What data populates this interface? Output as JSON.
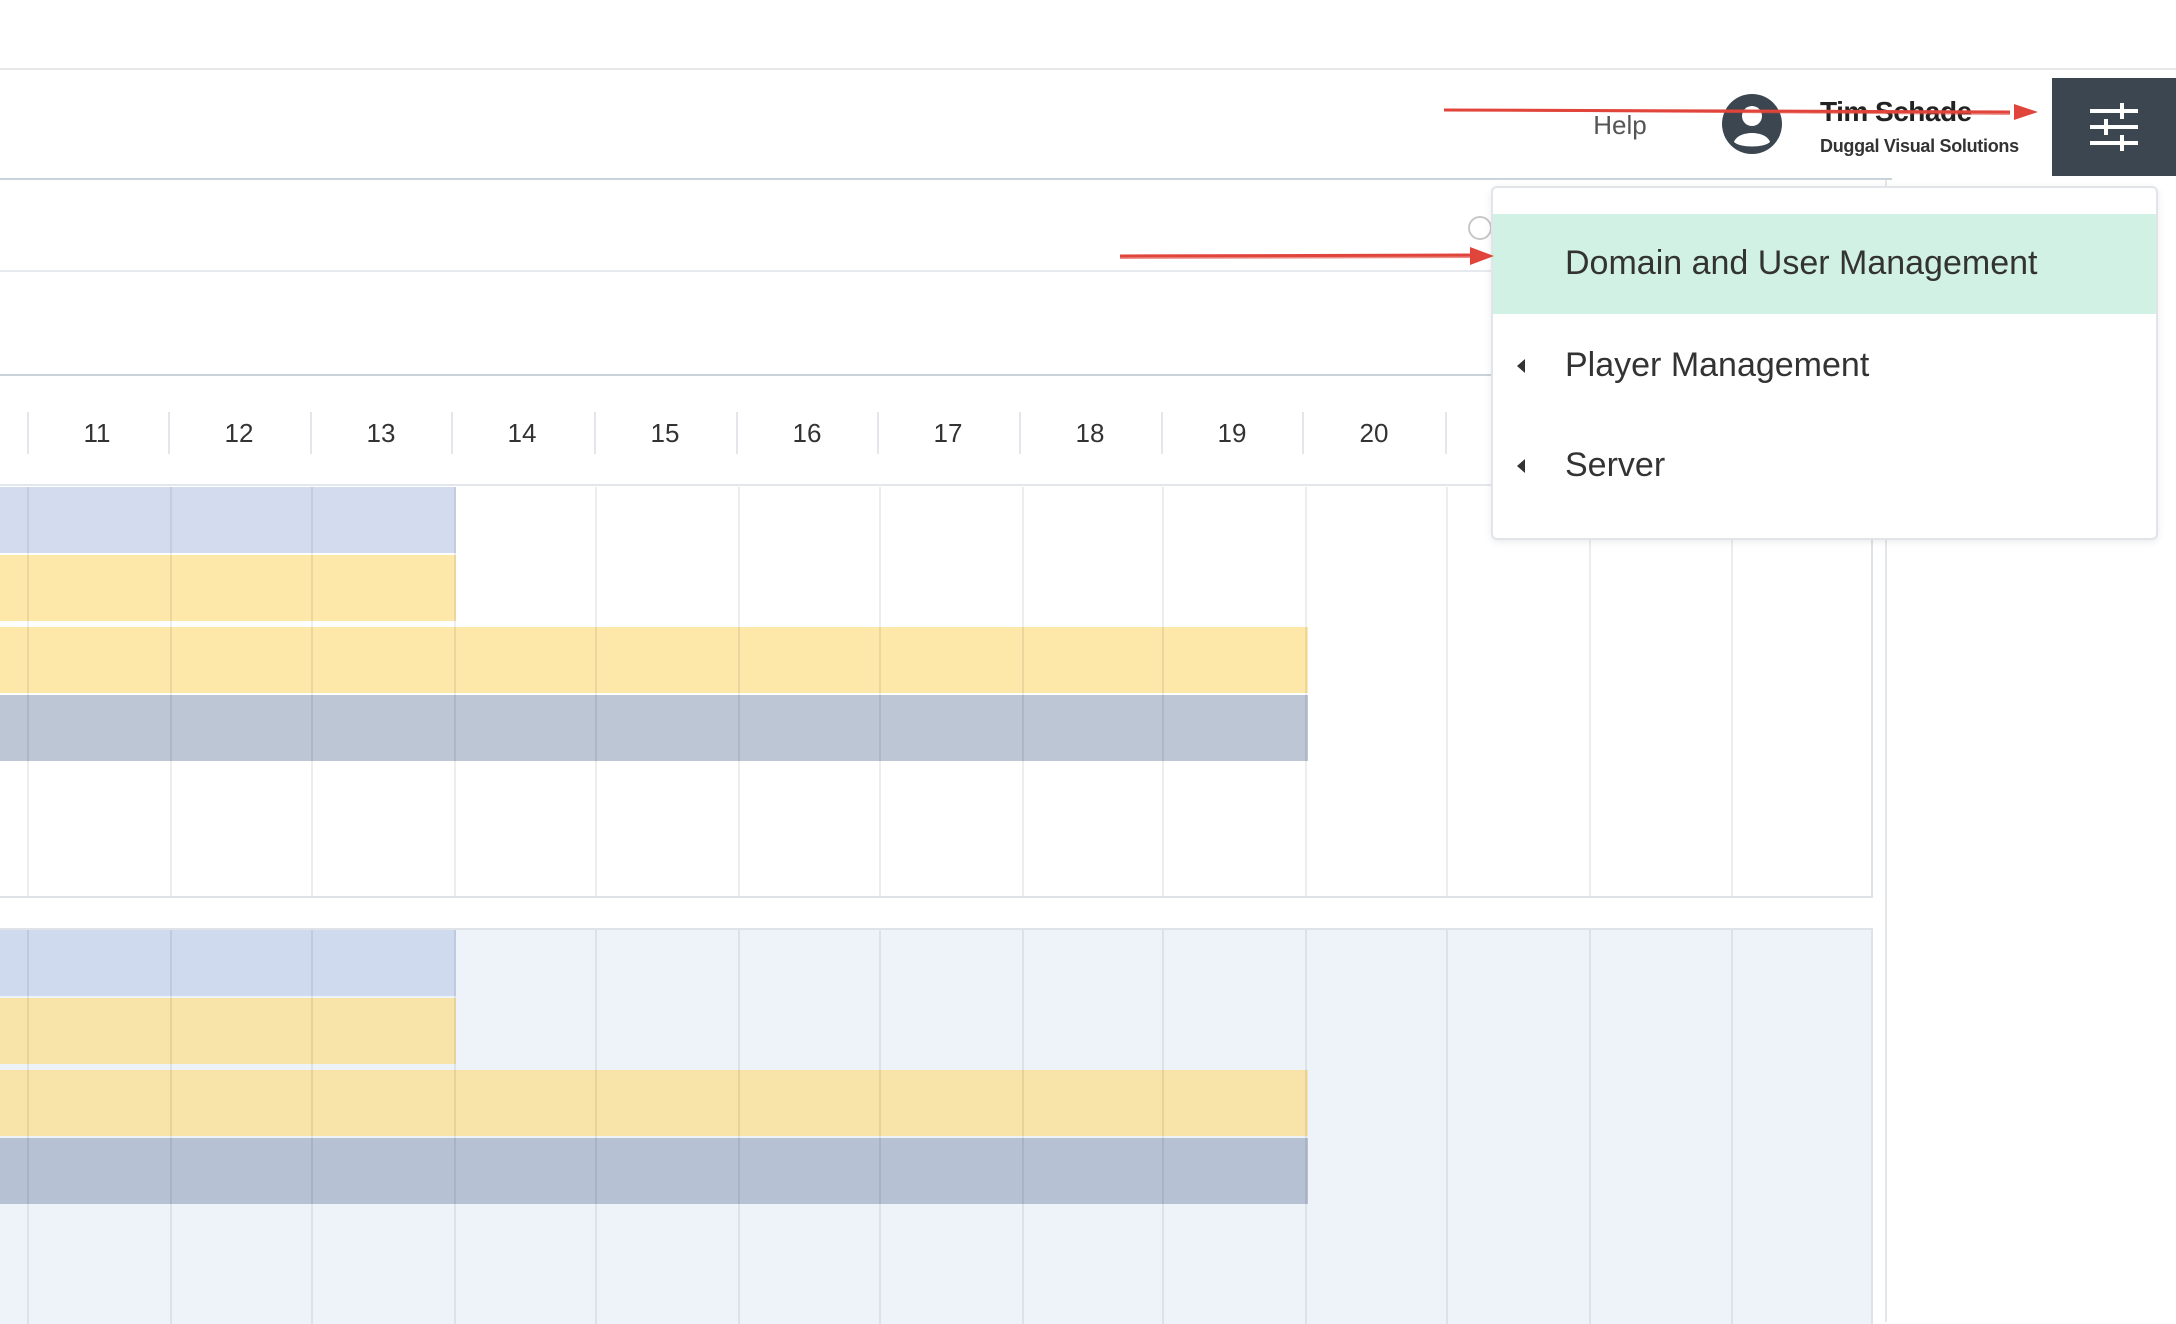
{
  "header": {
    "help_label": "Help",
    "user_name": "Tim Schade",
    "user_org": "Duggal Visual Solutions",
    "avatar_icon": "account-circle-icon",
    "settings_icon": "sliders-icon"
  },
  "calendar": {
    "days": [
      "11",
      "12",
      "13",
      "14",
      "15",
      "16",
      "17",
      "18",
      "19",
      "20"
    ]
  },
  "settings_menu": {
    "items": [
      {
        "label": "Domain and User Management",
        "active": true
      },
      {
        "label": "Player Management",
        "has_submenu": true
      },
      {
        "label": "Server",
        "has_submenu": true
      }
    ]
  },
  "colors": {
    "header_button": "#3b4650",
    "menu_active": "#d1f1e4",
    "bar_lavender": "#d3dcee",
    "bar_yellow": "#fde8a9",
    "bar_gray": "#bcc6d4",
    "annotation_arrow": "#e0443a"
  }
}
